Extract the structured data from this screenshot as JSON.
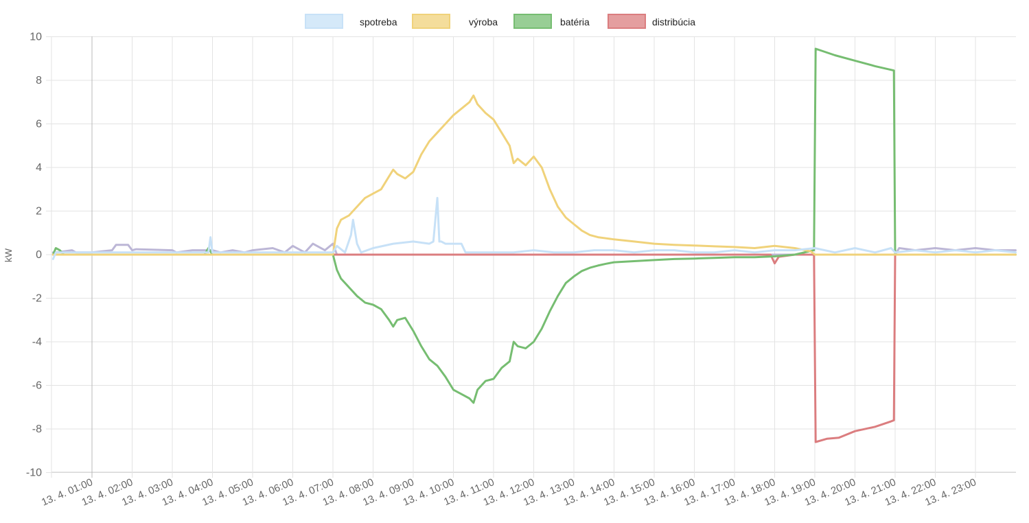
{
  "chart_data": {
    "type": "line",
    "title": "",
    "xlabel": "",
    "ylabel": "kW",
    "ylim": [
      -10,
      10
    ],
    "yticks": [
      10,
      8,
      6,
      4,
      2,
      0,
      -2,
      -4,
      -6,
      -8,
      -10
    ],
    "x_unit": "hour of day (13. 4.)",
    "xlim": [
      0.03,
      24.0
    ],
    "xticks": [
      "13. 4. 01:00",
      "13. 4. 02:00",
      "13. 4. 03:00",
      "13. 4. 04:00",
      "13. 4. 05:00",
      "13. 4. 06:00",
      "13. 4. 07:00",
      "13. 4. 08:00",
      "13. 4. 09:00",
      "13. 4. 10:00",
      "13. 4. 11:00",
      "13. 4. 12:00",
      "13. 4. 13:00",
      "13. 4. 14:00",
      "13. 4. 15:00",
      "13. 4. 16:00",
      "13. 4. 17:00",
      "13. 4. 18:00",
      "13. 4. 19:00",
      "13. 4. 20:00",
      "13. 4. 21:00",
      "13. 4. 22:00",
      "13. 4. 23:00"
    ],
    "xtick_hours": [
      1,
      2,
      3,
      4,
      5,
      6,
      7,
      8,
      9,
      10,
      11,
      12,
      13,
      14,
      15,
      16,
      17,
      18,
      19,
      20,
      21,
      22,
      23
    ],
    "grid": true,
    "legend_position": "top-center",
    "series": [
      {
        "name": "spotreba",
        "color": "#c7e1f7",
        "x": [
          0.03,
          0.1,
          0.5,
          1.0,
          1.5,
          2.0,
          2.5,
          3.0,
          3.5,
          3.9,
          3.95,
          4.0,
          4.5,
          5.0,
          5.5,
          6.0,
          6.5,
          7.0,
          7.1,
          7.3,
          7.45,
          7.5,
          7.6,
          7.7,
          8.0,
          8.5,
          9.0,
          9.4,
          9.5,
          9.6,
          9.65,
          9.7,
          9.8,
          10.0,
          10.2,
          10.3,
          10.5,
          11.0,
          11.5,
          12.0,
          12.5,
          13.0,
          13.5,
          14.0,
          14.5,
          15.0,
          15.5,
          16.0,
          16.5,
          17.0,
          17.5,
          18.0,
          18.5,
          19.0,
          19.5,
          20.0,
          20.5,
          20.9,
          21.0,
          21.5,
          22.0,
          22.5,
          23.0,
          23.5,
          24.0
        ],
        "y": [
          -0.2,
          0.1,
          0.1,
          0.1,
          0.1,
          0.1,
          0.1,
          0.1,
          0.1,
          0.1,
          0.8,
          0.1,
          0.1,
          0.1,
          0.1,
          0.1,
          0.1,
          0.1,
          0.4,
          0.1,
          0.9,
          1.6,
          0.5,
          0.1,
          0.3,
          0.5,
          0.6,
          0.5,
          0.6,
          2.6,
          0.6,
          0.6,
          0.5,
          0.5,
          0.5,
          0.1,
          0.1,
          0.1,
          0.1,
          0.2,
          0.1,
          0.1,
          0.2,
          0.2,
          0.1,
          0.2,
          0.2,
          0.1,
          0.1,
          0.2,
          0.1,
          0.2,
          0.2,
          0.3,
          0.1,
          0.3,
          0.1,
          0.3,
          0.1,
          0.2,
          0.1,
          0.2,
          0.1,
          0.2,
          0.1
        ]
      },
      {
        "name": "výroba",
        "color": "#f0d27a",
        "x": [
          0.03,
          7.0,
          7.1,
          7.2,
          7.4,
          7.6,
          7.8,
          8.0,
          8.2,
          8.4,
          8.5,
          8.6,
          8.8,
          9.0,
          9.2,
          9.4,
          9.6,
          9.8,
          10.0,
          10.2,
          10.4,
          10.5,
          10.6,
          10.8,
          11.0,
          11.2,
          11.4,
          11.5,
          11.6,
          11.8,
          12.0,
          12.2,
          12.4,
          12.6,
          12.8,
          13.0,
          13.2,
          13.4,
          13.6,
          13.8,
          14.0,
          14.5,
          15.0,
          15.5,
          16.0,
          16.5,
          17.0,
          17.5,
          18.0,
          18.5,
          18.9,
          19.0,
          24.0
        ],
        "y": [
          0.0,
          0.0,
          1.2,
          1.6,
          1.8,
          2.2,
          2.6,
          2.8,
          3.0,
          3.6,
          3.9,
          3.7,
          3.5,
          3.8,
          4.6,
          5.2,
          5.6,
          6.0,
          6.4,
          6.7,
          7.0,
          7.3,
          6.9,
          6.5,
          6.2,
          5.6,
          5.0,
          4.2,
          4.4,
          4.1,
          4.5,
          4.0,
          3.0,
          2.2,
          1.7,
          1.4,
          1.1,
          0.9,
          0.8,
          0.75,
          0.7,
          0.6,
          0.5,
          0.45,
          0.42,
          0.38,
          0.35,
          0.3,
          0.4,
          0.3,
          0.15,
          0.0,
          0.0
        ]
      },
      {
        "name": "batéria",
        "color": "#76bd71",
        "x": [
          0.03,
          0.1,
          0.2,
          0.3,
          1.0,
          3.8,
          3.9,
          4.0,
          7.0,
          7.1,
          7.2,
          7.4,
          7.6,
          7.8,
          8.0,
          8.2,
          8.4,
          8.5,
          8.6,
          8.8,
          9.0,
          9.2,
          9.4,
          9.6,
          9.8,
          10.0,
          10.2,
          10.4,
          10.5,
          10.6,
          10.8,
          11.0,
          11.2,
          11.4,
          11.5,
          11.6,
          11.8,
          12.0,
          12.2,
          12.4,
          12.6,
          12.8,
          13.0,
          13.2,
          13.4,
          13.6,
          13.8,
          14.0,
          14.5,
          15.0,
          15.5,
          16.0,
          16.5,
          17.0,
          17.5,
          18.0,
          18.5,
          18.98,
          19.02,
          19.5,
          20.0,
          20.5,
          20.97,
          21.0,
          24.0
        ],
        "y": [
          0.0,
          0.3,
          0.2,
          0.0,
          0.0,
          0.0,
          0.3,
          0.0,
          0.0,
          -0.7,
          -1.1,
          -1.5,
          -1.9,
          -2.2,
          -2.3,
          -2.5,
          -3.0,
          -3.3,
          -3.0,
          -2.9,
          -3.5,
          -4.2,
          -4.8,
          -5.1,
          -5.6,
          -6.2,
          -6.4,
          -6.6,
          -6.8,
          -6.2,
          -5.8,
          -5.7,
          -5.2,
          -4.9,
          -4.0,
          -4.2,
          -4.3,
          -4.0,
          -3.4,
          -2.6,
          -1.9,
          -1.3,
          -1.0,
          -0.75,
          -0.6,
          -0.5,
          -0.42,
          -0.35,
          -0.3,
          -0.25,
          -0.2,
          -0.18,
          -0.15,
          -0.12,
          -0.12,
          -0.08,
          0.0,
          0.2,
          9.45,
          9.15,
          8.9,
          8.65,
          8.45,
          0.0,
          0.0
        ]
      },
      {
        "name": "distribúcia",
        "color": "#db7d7f",
        "x": [
          7.0,
          10.0,
          15.0,
          17.9,
          18.0,
          18.1,
          18.5,
          18.98,
          19.02,
          19.3,
          19.6,
          20.0,
          20.5,
          20.9,
          20.97,
          21.0
        ],
        "y": [
          0.0,
          0.0,
          0.0,
          0.0,
          -0.4,
          -0.1,
          0.0,
          0.0,
          -8.6,
          -8.45,
          -8.4,
          -8.1,
          -7.9,
          -7.65,
          -7.6,
          0.0
        ]
      },
      {
        "color": "#bcb6d6",
        "x": [
          0.03,
          0.1,
          0.5,
          0.6,
          1.0,
          1.5,
          1.6,
          1.9,
          2.0,
          2.1,
          3.0,
          3.1,
          3.5,
          4.0,
          4.2,
          4.5,
          4.8,
          5.0,
          5.5,
          5.8,
          6.0,
          6.3,
          6.5,
          6.8,
          7.0,
          7.1,
          21.0,
          21.1,
          21.5,
          22.0,
          22.5,
          23.0,
          23.5,
          24.0
        ],
        "y": [
          0.1,
          0.1,
          0.2,
          0.1,
          0.1,
          0.2,
          0.45,
          0.45,
          0.2,
          0.25,
          0.2,
          0.1,
          0.2,
          0.2,
          0.1,
          0.2,
          0.1,
          0.2,
          0.3,
          0.1,
          0.4,
          0.1,
          0.5,
          0.2,
          0.5,
          0.0,
          0.0,
          0.3,
          0.2,
          0.3,
          0.2,
          0.3,
          0.2,
          0.2
        ]
      }
    ]
  }
}
